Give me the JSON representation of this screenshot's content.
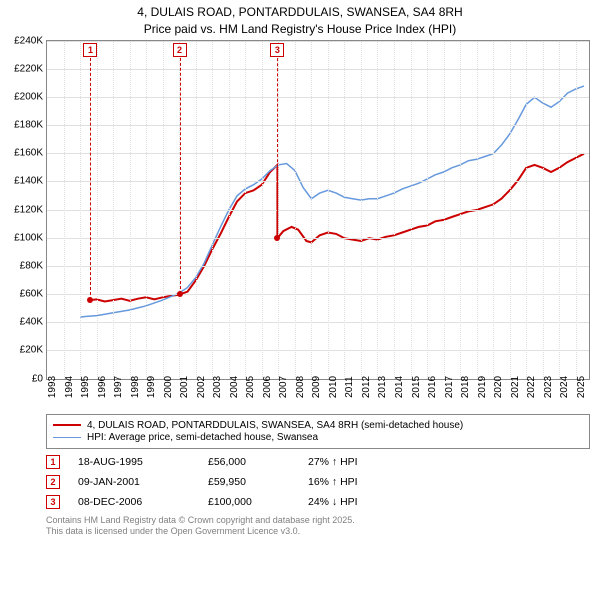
{
  "title": {
    "line1": "4, DULAIS ROAD, PONTARDDULAIS, SWANSEA, SA4 8RH",
    "line2": "Price paid vs. HM Land Registry's House Price Index (HPI)"
  },
  "chart": {
    "type": "line",
    "background_color": "#ffffff",
    "grid_color": "#e0e0e0",
    "border_color": "#888888",
    "y": {
      "min": 0,
      "max": 240000,
      "step": 20000,
      "labels": [
        "£0",
        "£20K",
        "£40K",
        "£60K",
        "£80K",
        "£100K",
        "£120K",
        "£140K",
        "£160K",
        "£180K",
        "£200K",
        "£220K",
        "£240K"
      ]
    },
    "x": {
      "min": 1993,
      "max": 2025.8,
      "step": 1,
      "labels": [
        "1993",
        "1994",
        "1995",
        "1996",
        "1997",
        "1998",
        "1999",
        "2000",
        "2001",
        "2002",
        "2003",
        "2004",
        "2005",
        "2006",
        "2007",
        "2008",
        "2009",
        "2010",
        "2011",
        "2012",
        "2013",
        "2014",
        "2015",
        "2016",
        "2017",
        "2018",
        "2019",
        "2020",
        "2021",
        "2022",
        "2023",
        "2024",
        "2025"
      ]
    },
    "series": [
      {
        "name": "price_paid",
        "color": "#cc0000",
        "width": 2,
        "points": [
          [
            1995.6,
            56000
          ],
          [
            1996,
            56500
          ],
          [
            1996.5,
            55000
          ],
          [
            1997,
            56000
          ],
          [
            1997.5,
            57000
          ],
          [
            1998,
            55500
          ],
          [
            1998.5,
            57000
          ],
          [
            1999,
            58000
          ],
          [
            1999.5,
            56500
          ],
          [
            2000,
            58000
          ],
          [
            2000.5,
            59000
          ],
          [
            2001.0,
            59950
          ],
          [
            2001.5,
            62000
          ],
          [
            2002,
            70000
          ],
          [
            2002.5,
            80000
          ],
          [
            2003,
            92000
          ],
          [
            2003.5,
            103000
          ],
          [
            2004,
            115000
          ],
          [
            2004.5,
            126000
          ],
          [
            2005,
            132000
          ],
          [
            2005.5,
            134000
          ],
          [
            2006,
            138000
          ],
          [
            2006.5,
            147000
          ],
          [
            2006.94,
            152000
          ],
          [
            2006.941,
            100000
          ],
          [
            2007.3,
            105000
          ],
          [
            2007.8,
            108000
          ],
          [
            2008.2,
            106000
          ],
          [
            2008.7,
            98000
          ],
          [
            2009,
            97000
          ],
          [
            2009.5,
            102000
          ],
          [
            2010,
            104000
          ],
          [
            2010.5,
            103000
          ],
          [
            2011,
            100000
          ],
          [
            2011.5,
            99000
          ],
          [
            2012,
            98000
          ],
          [
            2012.5,
            100000
          ],
          [
            2013,
            99000
          ],
          [
            2013.5,
            101000
          ],
          [
            2014,
            102000
          ],
          [
            2014.5,
            104000
          ],
          [
            2015,
            106000
          ],
          [
            2015.5,
            108000
          ],
          [
            2016,
            109000
          ],
          [
            2016.5,
            112000
          ],
          [
            2017,
            113000
          ],
          [
            2017.5,
            115000
          ],
          [
            2018,
            117000
          ],
          [
            2018.5,
            119000
          ],
          [
            2019,
            120000
          ],
          [
            2019.5,
            122000
          ],
          [
            2020,
            124000
          ],
          [
            2020.5,
            128000
          ],
          [
            2021,
            134000
          ],
          [
            2021.5,
            141000
          ],
          [
            2022,
            150000
          ],
          [
            2022.5,
            152000
          ],
          [
            2023,
            150000
          ],
          [
            2023.5,
            147000
          ],
          [
            2024,
            150000
          ],
          [
            2024.5,
            154000
          ],
          [
            2025,
            157000
          ],
          [
            2025.5,
            160000
          ]
        ]
      },
      {
        "name": "hpi",
        "color": "#6699dd",
        "width": 1.5,
        "points": [
          [
            1995,
            44000
          ],
          [
            1995.5,
            44500
          ],
          [
            1996,
            45000
          ],
          [
            1996.5,
            46000
          ],
          [
            1997,
            47000
          ],
          [
            1997.5,
            48000
          ],
          [
            1998,
            49000
          ],
          [
            1998.5,
            50500
          ],
          [
            1999,
            52000
          ],
          [
            1999.5,
            54000
          ],
          [
            2000,
            56000
          ],
          [
            2000.5,
            58500
          ],
          [
            2001,
            61000
          ],
          [
            2001.5,
            65000
          ],
          [
            2002,
            72000
          ],
          [
            2002.5,
            82000
          ],
          [
            2003,
            95000
          ],
          [
            2003.5,
            108000
          ],
          [
            2004,
            120000
          ],
          [
            2004.5,
            130000
          ],
          [
            2005,
            135000
          ],
          [
            2005.5,
            138000
          ],
          [
            2006,
            142000
          ],
          [
            2006.5,
            148000
          ],
          [
            2007,
            152000
          ],
          [
            2007.5,
            153000
          ],
          [
            2008,
            148000
          ],
          [
            2008.5,
            136000
          ],
          [
            2009,
            128000
          ],
          [
            2009.5,
            132000
          ],
          [
            2010,
            134000
          ],
          [
            2010.5,
            132000
          ],
          [
            2011,
            129000
          ],
          [
            2011.5,
            128000
          ],
          [
            2012,
            127000
          ],
          [
            2012.5,
            128000
          ],
          [
            2013,
            128000
          ],
          [
            2013.5,
            130000
          ],
          [
            2014,
            132000
          ],
          [
            2014.5,
            135000
          ],
          [
            2015,
            137000
          ],
          [
            2015.5,
            139000
          ],
          [
            2016,
            142000
          ],
          [
            2016.5,
            145000
          ],
          [
            2017,
            147000
          ],
          [
            2017.5,
            150000
          ],
          [
            2018,
            152000
          ],
          [
            2018.5,
            155000
          ],
          [
            2019,
            156000
          ],
          [
            2019.5,
            158000
          ],
          [
            2020,
            160000
          ],
          [
            2020.5,
            166000
          ],
          [
            2021,
            174000
          ],
          [
            2021.5,
            184000
          ],
          [
            2022,
            195000
          ],
          [
            2022.5,
            200000
          ],
          [
            2023,
            196000
          ],
          [
            2023.5,
            193000
          ],
          [
            2024,
            197000
          ],
          [
            2024.5,
            203000
          ],
          [
            2025,
            206000
          ],
          [
            2025.5,
            208000
          ]
        ]
      }
    ],
    "markers": [
      {
        "n": "1",
        "x": 1995.63,
        "y": 56000
      },
      {
        "n": "2",
        "x": 2001.02,
        "y": 59950
      },
      {
        "n": "3",
        "x": 2006.94,
        "y": 100000
      }
    ]
  },
  "legend": {
    "rows": [
      {
        "color": "#cc0000",
        "width": 2,
        "label": "4, DULAIS ROAD, PONTARDDULAIS, SWANSEA, SA4 8RH (semi-detached house)"
      },
      {
        "color": "#6699dd",
        "width": 1.5,
        "label": "HPI: Average price, semi-detached house, Swansea"
      }
    ]
  },
  "events": [
    {
      "n": "1",
      "date": "18-AUG-1995",
      "price": "£56,000",
      "delta": "27% ↑ HPI"
    },
    {
      "n": "2",
      "date": "09-JAN-2001",
      "price": "£59,950",
      "delta": "16% ↑ HPI"
    },
    {
      "n": "3",
      "date": "08-DEC-2006",
      "price": "£100,000",
      "delta": "24% ↓ HPI"
    }
  ],
  "footer": {
    "line1": "Contains HM Land Registry data © Crown copyright and database right 2025.",
    "line2": "This data is licensed under the Open Government Licence v3.0."
  }
}
